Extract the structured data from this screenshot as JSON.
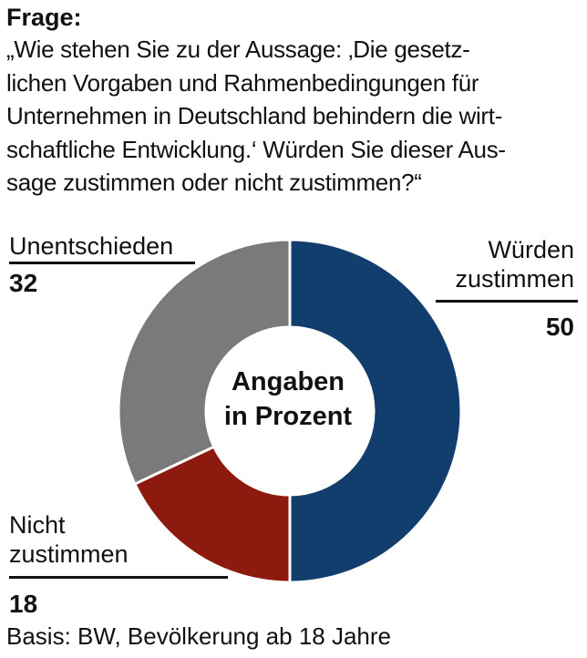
{
  "header": {
    "title": "Frage:",
    "question_lines": [
      "„Wie stehen Sie zu der Aussage: ‚Die gesetz-",
      "lichen Vorgaben und Rahmenbedingungen  für",
      "Unternehmen in Deutschland behindern die wirt-",
      "schaftliche Entwicklung.‘ Würden Sie dieser Aus-",
      "sage zustimmen oder nicht zustimmen?“"
    ]
  },
  "chart_data": {
    "type": "pie",
    "variant": "donut",
    "center_label": [
      "Angaben",
      "in Prozent"
    ],
    "slices": [
      {
        "label_lines": [
          "Würden",
          "zustimmen"
        ],
        "value": 50,
        "color": "#123e6e"
      },
      {
        "label_lines": [
          "Nicht",
          "zustimmen"
        ],
        "value": 18,
        "color": "#8c1a0f"
      },
      {
        "label_lines": [
          "Unentschieden"
        ],
        "value": 32,
        "color": "#7a7a7a"
      }
    ]
  },
  "footer": {
    "basis": "Basis: BW, Bevölkerung ab 18 Jahre"
  }
}
